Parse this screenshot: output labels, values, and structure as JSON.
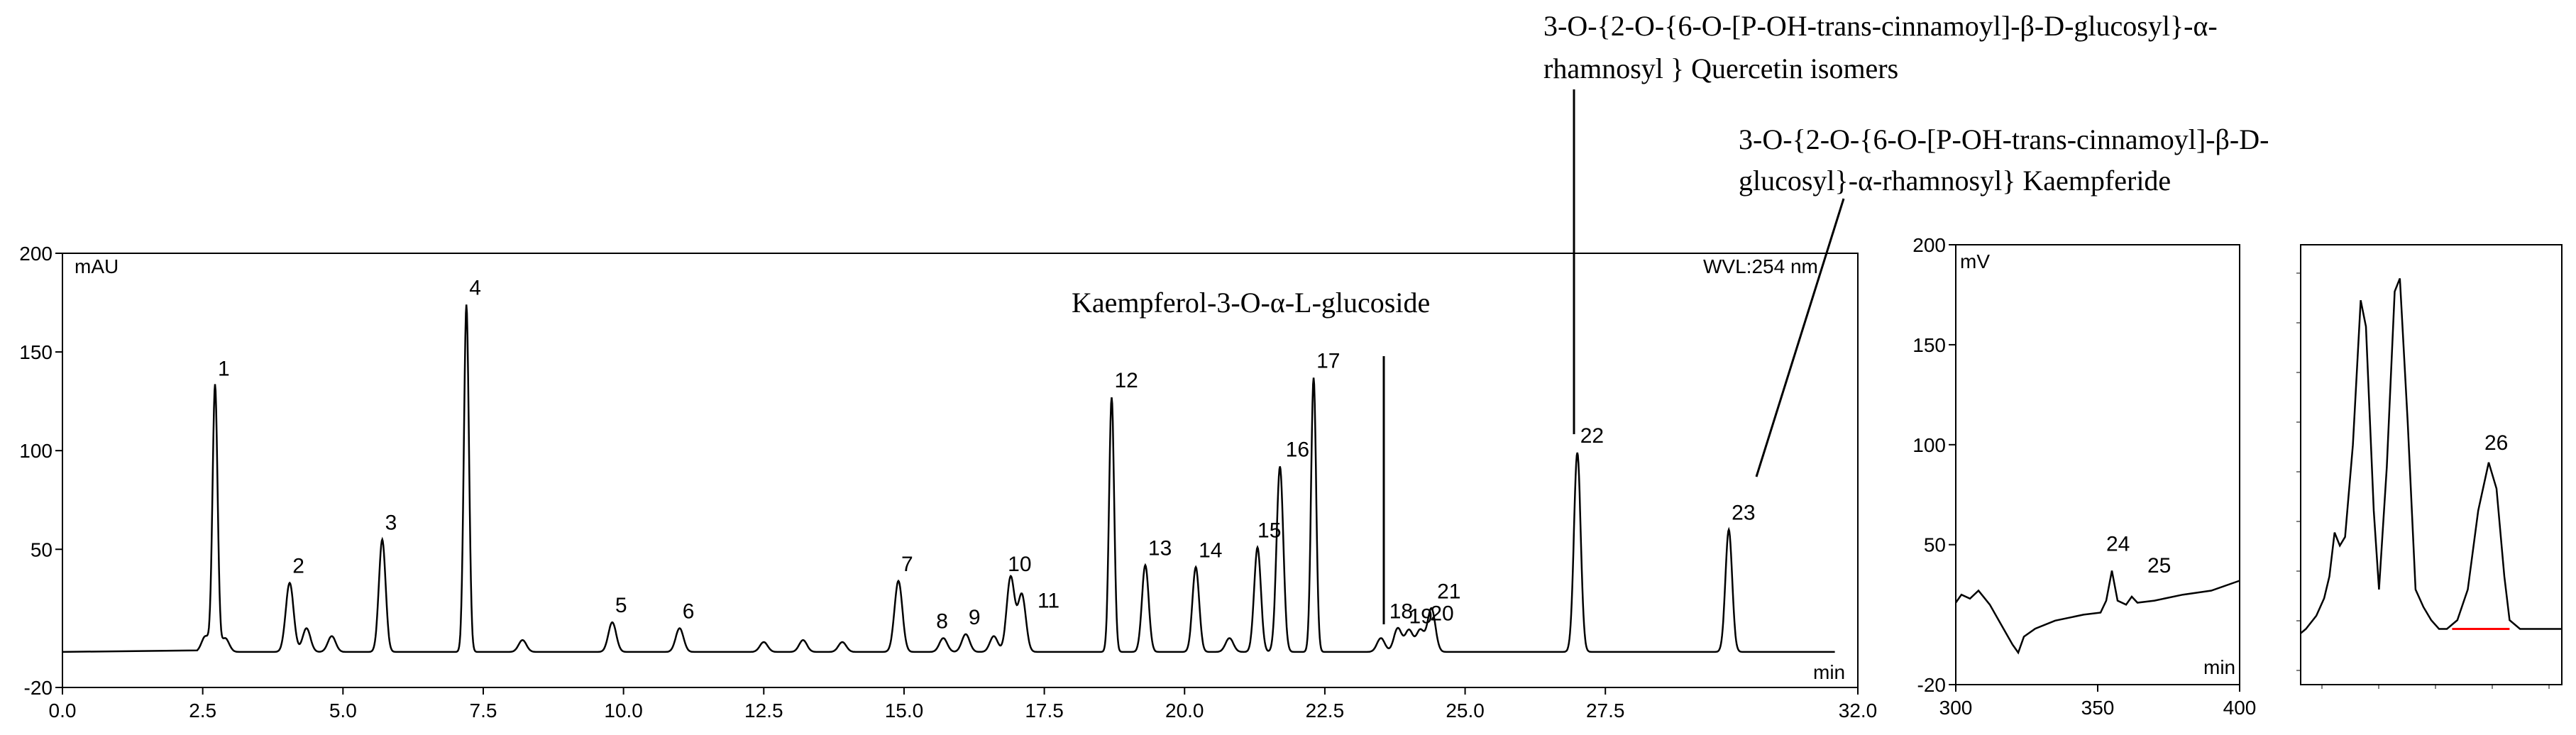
{
  "chart_data": [
    {
      "type": "line",
      "units": {
        "y": "mAU",
        "x": "min"
      },
      "wavelength": "WVL:254 nm",
      "x_ticks": [
        "0.0",
        "2.5",
        "5.0",
        "7.5",
        "10.0",
        "12.5",
        "15.0",
        "17.5",
        "20.0",
        "22.5",
        "25.0",
        "27.5",
        "32.0"
      ],
      "y_ticks": [
        "200",
        "150",
        "100",
        "50",
        "-20"
      ],
      "peaks": [
        {
          "label": "1",
          "x": 2.72,
          "y": 133
        },
        {
          "label": "2",
          "x": 4.05,
          "y": 33
        },
        {
          "label": "3",
          "x": 5.7,
          "y": 55
        },
        {
          "label": "4",
          "x": 7.2,
          "y": 174
        },
        {
          "label": "5",
          "x": 9.8,
          "y": 13
        },
        {
          "label": "6",
          "x": 11.0,
          "y": 10
        },
        {
          "label": "7",
          "x": 14.9,
          "y": 34
        },
        {
          "label": "8",
          "x": 15.7,
          "y": 5
        },
        {
          "label": "9",
          "x": 16.1,
          "y": 7
        },
        {
          "label": "10",
          "x": 16.9,
          "y": 36
        },
        {
          "label": "11",
          "x": 17.1,
          "y": 27
        },
        {
          "label": "12",
          "x": 18.7,
          "y": 127
        },
        {
          "label": "13",
          "x": 19.3,
          "y": 42
        },
        {
          "label": "14",
          "x": 20.2,
          "y": 41
        },
        {
          "label": "15",
          "x": 21.3,
          "y": 51
        },
        {
          "label": "16",
          "x": 21.7,
          "y": 92
        },
        {
          "label": "17",
          "x": 22.3,
          "y": 137
        },
        {
          "label": "18",
          "x": 23.8,
          "y": 10
        },
        {
          "label": "19",
          "x": 24.0,
          "y": 9
        },
        {
          "label": "20",
          "x": 24.2,
          "y": 9
        },
        {
          "label": "21",
          "x": 24.4,
          "y": 20
        },
        {
          "label": "22",
          "x": 27.0,
          "y": 99
        },
        {
          "label": "23",
          "x": 29.7,
          "y": 60
        }
      ],
      "minor_peaks": [
        {
          "x": 2.55,
          "y": 6
        },
        {
          "x": 2.9,
          "y": 5
        },
        {
          "x": 4.35,
          "y": 10
        },
        {
          "x": 4.8,
          "y": 6
        },
        {
          "x": 8.2,
          "y": 4
        },
        {
          "x": 12.5,
          "y": 3
        },
        {
          "x": 13.2,
          "y": 4
        },
        {
          "x": 13.9,
          "y": 3
        },
        {
          "x": 16.6,
          "y": 6
        },
        {
          "x": 20.8,
          "y": 5
        },
        {
          "x": 23.5,
          "y": 5
        }
      ],
      "baseline": -2,
      "xlim": [
        0,
        32
      ],
      "ylim": [
        -20,
        200
      ]
    },
    {
      "type": "line",
      "units": {
        "y": "mV",
        "x": "min"
      },
      "x_ticks": [
        "300",
        "350",
        "400"
      ],
      "y_ticks": [
        "200",
        "150",
        "100",
        "50",
        "-20"
      ],
      "xlim": [
        300,
        400
      ],
      "ylim": [
        -20,
        200
      ],
      "trace": [
        [
          300,
          21
        ],
        [
          302,
          25
        ],
        [
          305,
          23
        ],
        [
          308,
          27
        ],
        [
          312,
          20
        ],
        [
          316,
          10
        ],
        [
          320,
          0
        ],
        [
          322,
          -4
        ],
        [
          324,
          4
        ],
        [
          328,
          8
        ],
        [
          335,
          12
        ],
        [
          345,
          15
        ],
        [
          351,
          16
        ],
        [
          353,
          22
        ],
        [
          355,
          37
        ],
        [
          357,
          22
        ],
        [
          360,
          20
        ],
        [
          362,
          24
        ],
        [
          364,
          21
        ],
        [
          370,
          22
        ],
        [
          380,
          25
        ],
        [
          390,
          27
        ],
        [
          400,
          32
        ]
      ],
      "peaks": [
        {
          "label": "24",
          "x": 355,
          "y": 37
        },
        {
          "label": "25",
          "x": 362,
          "y": 24
        }
      ]
    },
    {
      "type": "line",
      "peaks": [
        {
          "label": "26",
          "x": 0.72,
          "y": 0.41
        }
      ],
      "trace": [
        [
          0,
          0.02
        ],
        [
          0.02,
          0.03
        ],
        [
          0.06,
          0.06
        ],
        [
          0.09,
          0.1
        ],
        [
          0.11,
          0.15
        ],
        [
          0.13,
          0.25
        ],
        [
          0.15,
          0.22
        ],
        [
          0.17,
          0.24
        ],
        [
          0.2,
          0.45
        ],
        [
          0.23,
          0.78
        ],
        [
          0.25,
          0.72
        ],
        [
          0.28,
          0.3
        ],
        [
          0.3,
          0.12
        ],
        [
          0.33,
          0.4
        ],
        [
          0.36,
          0.8
        ],
        [
          0.38,
          0.83
        ],
        [
          0.41,
          0.5
        ],
        [
          0.44,
          0.12
        ],
        [
          0.47,
          0.08
        ],
        [
          0.5,
          0.05
        ],
        [
          0.53,
          0.03
        ],
        [
          0.56,
          0.03
        ],
        [
          0.6,
          0.05
        ],
        [
          0.64,
          0.12
        ],
        [
          0.68,
          0.3
        ],
        [
          0.72,
          0.41
        ],
        [
          0.75,
          0.35
        ],
        [
          0.78,
          0.15
        ],
        [
          0.8,
          0.05
        ],
        [
          0.84,
          0.03
        ],
        [
          0.9,
          0.03
        ],
        [
          1.0,
          0.03
        ]
      ],
      "integration_baseline": {
        "x0": 0.58,
        "x1": 0.8,
        "color": "#ff0000"
      }
    }
  ],
  "annotations": {
    "kaempferol": "Kaempferol-3-O-α-L-glucoside",
    "quercetin_line1": "3-O-{2-O-{6-O-[P-OH-trans-cinnamoyl]-β-D-glucosyl}-α-",
    "quercetin_line2": "rhamnosyl } Quercetin isomers",
    "kaempferide_line1": "3-O-{2-O-{6-O-[P-OH-trans-cinnamoyl]-β-D-",
    "kaempferide_line2": "glucosyl}-α-rhamnosyl} Kaempferide"
  },
  "colors": {
    "trace": "#000000",
    "integration": "#ff0000",
    "axis": "#000000"
  }
}
